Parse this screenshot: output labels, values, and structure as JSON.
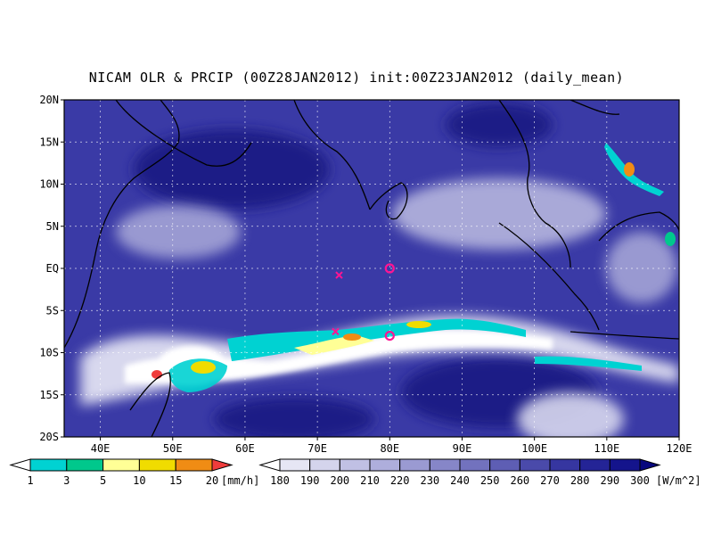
{
  "title": "NICAM OLR & PRCIP (00Z28JAN2012) init:00Z23JAN2012 (daily_mean)",
  "map": {
    "lon_range": [
      35,
      120
    ],
    "lat_range": [
      -20,
      20
    ],
    "lat_ticks": [
      "20N",
      "15N",
      "10N",
      "5N",
      "EQ",
      "5S",
      "10S",
      "15S",
      "20S"
    ],
    "lon_ticks": [
      "40E",
      "50E",
      "60E",
      "70E",
      "80E",
      "90E",
      "100E",
      "110E",
      "120E"
    ],
    "grid": true,
    "markers": [
      {
        "type": "circle",
        "lon": 80,
        "lat": 0,
        "color": "#ff1493"
      },
      {
        "type": "circle",
        "lon": 80,
        "lat": -8,
        "color": "#ff1493"
      },
      {
        "type": "cross",
        "lon": 73,
        "lat": -0.8,
        "color": "#ff1493"
      },
      {
        "type": "cross",
        "lon": 72.5,
        "lat": -7.5,
        "color": "#ff1493"
      }
    ]
  },
  "precip_bar": {
    "labels": [
      "1",
      "3",
      "5",
      "10",
      "15",
      "20"
    ],
    "unit": "[mm/h]",
    "colors": [
      "#ffffff",
      "#00d2d2",
      "#00c88c",
      "#ffff96",
      "#f0dc00",
      "#f08c14",
      "#f03c3c"
    ]
  },
  "olr_bar": {
    "labels": [
      "180",
      "190",
      "200",
      "210",
      "220",
      "230",
      "240",
      "250",
      "260",
      "270",
      "280",
      "290",
      "300"
    ],
    "unit": "[W/m^2]",
    "colors": [
      "#ffffff",
      "#e6e6f4",
      "#d4d4ec",
      "#c0c0e4",
      "#aeaedc",
      "#9a9ad2",
      "#8686c8",
      "#7272be",
      "#5e5eb4",
      "#4a4aaa",
      "#3636a0",
      "#242496",
      "#14148c",
      "#08087e"
    ]
  }
}
